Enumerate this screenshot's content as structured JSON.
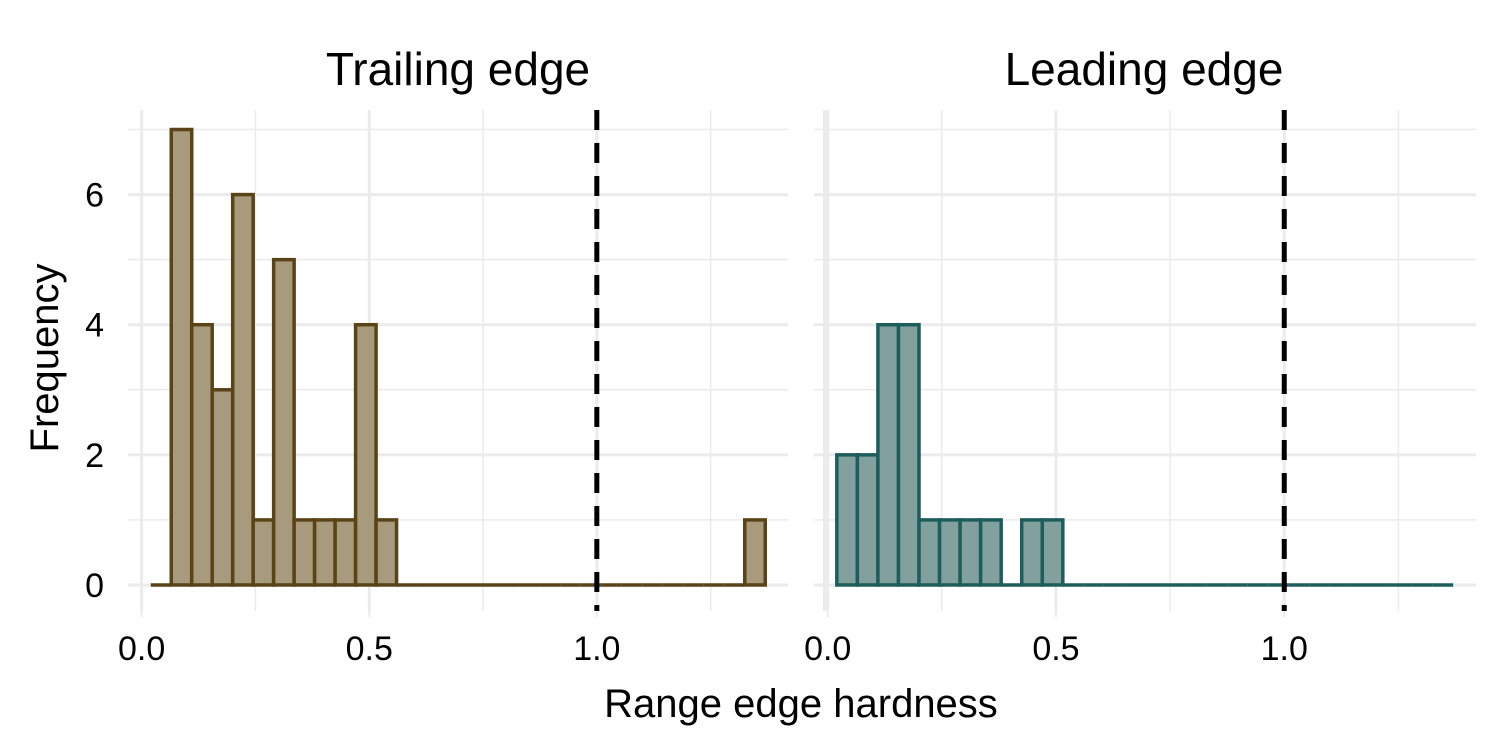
{
  "chart_data": {
    "type": "bar",
    "subtype": "histogram",
    "xlabel": "Range edge hardness",
    "ylabel": "Frequency",
    "x_ticks": [
      "0.0",
      "0.5",
      "1.0"
    ],
    "y_ticks": [
      "0",
      "2",
      "4",
      "6"
    ],
    "xlim": [
      -0.03,
      1.42
    ],
    "ylim": [
      -0.4,
      7.3
    ],
    "bin_width": 0.045,
    "reference_line": {
      "x": 1.0,
      "style": "dashed",
      "color": "#000000"
    },
    "grid": true,
    "panels": [
      {
        "title": "Trailing edge",
        "fill": "#a89a7d",
        "stroke": "#5a4417",
        "bins": [
          {
            "x0": 0.02,
            "x1": 0.065,
            "count": 0
          },
          {
            "x0": 0.065,
            "x1": 0.11,
            "count": 7
          },
          {
            "x0": 0.11,
            "x1": 0.155,
            "count": 4
          },
          {
            "x0": 0.155,
            "x1": 0.2,
            "count": 3
          },
          {
            "x0": 0.2,
            "x1": 0.245,
            "count": 6
          },
          {
            "x0": 0.245,
            "x1": 0.29,
            "count": 1
          },
          {
            "x0": 0.29,
            "x1": 0.335,
            "count": 5
          },
          {
            "x0": 0.335,
            "x1": 0.38,
            "count": 1
          },
          {
            "x0": 0.38,
            "x1": 0.425,
            "count": 1
          },
          {
            "x0": 0.425,
            "x1": 0.47,
            "count": 1
          },
          {
            "x0": 0.47,
            "x1": 0.515,
            "count": 4
          },
          {
            "x0": 0.515,
            "x1": 0.56,
            "count": 1
          },
          {
            "x0": 0.56,
            "x1": 0.605,
            "count": 0
          },
          {
            "x0": 0.605,
            "x1": 0.65,
            "count": 0
          },
          {
            "x0": 0.65,
            "x1": 0.695,
            "count": 0
          },
          {
            "x0": 0.695,
            "x1": 0.74,
            "count": 0
          },
          {
            "x0": 0.74,
            "x1": 0.785,
            "count": 0
          },
          {
            "x0": 0.785,
            "x1": 0.83,
            "count": 0
          },
          {
            "x0": 0.83,
            "x1": 0.875,
            "count": 0
          },
          {
            "x0": 0.875,
            "x1": 0.92,
            "count": 0
          },
          {
            "x0": 0.92,
            "x1": 0.965,
            "count": 0
          },
          {
            "x0": 0.965,
            "x1": 1.01,
            "count": 0
          },
          {
            "x0": 1.01,
            "x1": 1.055,
            "count": 0
          },
          {
            "x0": 1.055,
            "x1": 1.1,
            "count": 0
          },
          {
            "x0": 1.1,
            "x1": 1.145,
            "count": 0
          },
          {
            "x0": 1.145,
            "x1": 1.19,
            "count": 0
          },
          {
            "x0": 1.19,
            "x1": 1.235,
            "count": 0
          },
          {
            "x0": 1.235,
            "x1": 1.28,
            "count": 0
          },
          {
            "x0": 1.28,
            "x1": 1.325,
            "count": 0
          },
          {
            "x0": 1.325,
            "x1": 1.37,
            "count": 1
          }
        ]
      },
      {
        "title": "Leading edge",
        "fill": "#82a09e",
        "stroke": "#1d5e5c",
        "bins": [
          {
            "x0": 0.02,
            "x1": 0.065,
            "count": 2
          },
          {
            "x0": 0.065,
            "x1": 0.11,
            "count": 2
          },
          {
            "x0": 0.11,
            "x1": 0.155,
            "count": 4
          },
          {
            "x0": 0.155,
            "x1": 0.2,
            "count": 4
          },
          {
            "x0": 0.2,
            "x1": 0.245,
            "count": 1
          },
          {
            "x0": 0.245,
            "x1": 0.29,
            "count": 1
          },
          {
            "x0": 0.29,
            "x1": 0.335,
            "count": 1
          },
          {
            "x0": 0.335,
            "x1": 0.38,
            "count": 1
          },
          {
            "x0": 0.38,
            "x1": 0.425,
            "count": 0
          },
          {
            "x0": 0.425,
            "x1": 0.47,
            "count": 1
          },
          {
            "x0": 0.47,
            "x1": 0.515,
            "count": 1
          },
          {
            "x0": 0.515,
            "x1": 0.56,
            "count": 0
          },
          {
            "x0": 0.56,
            "x1": 0.605,
            "count": 0
          },
          {
            "x0": 0.605,
            "x1": 0.65,
            "count": 0
          },
          {
            "x0": 0.65,
            "x1": 0.695,
            "count": 0
          },
          {
            "x0": 0.695,
            "x1": 0.74,
            "count": 0
          },
          {
            "x0": 0.74,
            "x1": 0.785,
            "count": 0
          },
          {
            "x0": 0.785,
            "x1": 0.83,
            "count": 0
          },
          {
            "x0": 0.83,
            "x1": 0.875,
            "count": 0
          },
          {
            "x0": 0.875,
            "x1": 0.92,
            "count": 0
          },
          {
            "x0": 0.92,
            "x1": 0.965,
            "count": 0
          },
          {
            "x0": 0.965,
            "x1": 1.01,
            "count": 0
          },
          {
            "x0": 1.01,
            "x1": 1.055,
            "count": 0
          },
          {
            "x0": 1.055,
            "x1": 1.1,
            "count": 0
          },
          {
            "x0": 1.1,
            "x1": 1.145,
            "count": 0
          },
          {
            "x0": 1.145,
            "x1": 1.19,
            "count": 0
          },
          {
            "x0": 1.19,
            "x1": 1.235,
            "count": 0
          },
          {
            "x0": 1.235,
            "x1": 1.28,
            "count": 0
          },
          {
            "x0": 1.28,
            "x1": 1.325,
            "count": 0
          },
          {
            "x0": 1.325,
            "x1": 1.37,
            "count": 0
          }
        ]
      }
    ]
  }
}
